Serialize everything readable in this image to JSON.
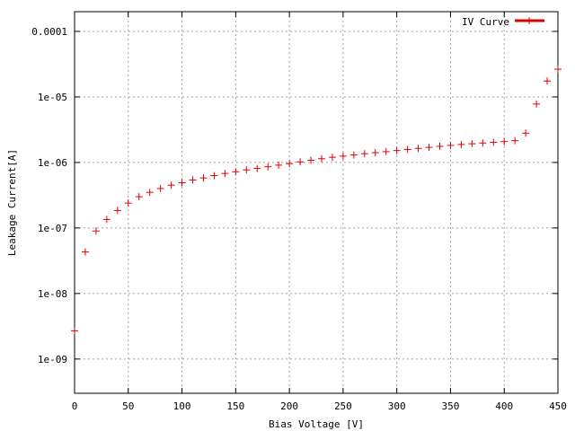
{
  "chart_data": {
    "type": "scatter",
    "title": "",
    "xlabel": "Bias Voltage [V]",
    "ylabel": "Leakage Current[A]",
    "xlim": [
      0,
      450
    ],
    "ylim": [
      3e-10,
      0.0002
    ],
    "yscale": "log",
    "grid": true,
    "legend_position": "top-right",
    "x_ticks": [
      0,
      50,
      100,
      150,
      200,
      250,
      300,
      350,
      400,
      450
    ],
    "x_tick_labels": [
      "0",
      "50",
      "100",
      "150",
      "200",
      "250",
      "300",
      "350",
      "400",
      "450"
    ],
    "y_ticks": [
      1e-09,
      1e-08,
      1e-07,
      1e-06,
      1e-05,
      0.0001
    ],
    "y_tick_labels": [
      "1e-09",
      "1e-08",
      "1e-07",
      "1e-06",
      "1e-05",
      "0.0001"
    ],
    "series": [
      {
        "name": "IV Curve",
        "color": "#e00000",
        "marker": "plus",
        "x": [
          0,
          10,
          20,
          30,
          40,
          50,
          60,
          70,
          80,
          90,
          100,
          110,
          120,
          130,
          140,
          150,
          160,
          170,
          180,
          190,
          200,
          210,
          220,
          230,
          240,
          250,
          260,
          270,
          280,
          290,
          300,
          310,
          320,
          330,
          340,
          350,
          360,
          370,
          380,
          390,
          400,
          410,
          420,
          430,
          440,
          450
        ],
        "y": [
          2.7e-09,
          4.3e-08,
          9e-08,
          1.35e-07,
          1.85e-07,
          2.4e-07,
          3e-07,
          3.5e-07,
          4e-07,
          4.5e-07,
          4.9e-07,
          5.4e-07,
          5.8e-07,
          6.3e-07,
          6.8e-07,
          7.2e-07,
          7.7e-07,
          8.1e-07,
          8.6e-07,
          9.1e-07,
          9.6e-07,
          1.02e-06,
          1.08e-06,
          1.14e-06,
          1.2e-06,
          1.25e-06,
          1.3e-06,
          1.36e-06,
          1.41e-06,
          1.46e-06,
          1.52e-06,
          1.58e-06,
          1.64e-06,
          1.7e-06,
          1.76e-06,
          1.82e-06,
          1.88e-06,
          1.93e-06,
          1.98e-06,
          2.03e-06,
          2.08e-06,
          2.15e-06,
          2.8e-06,
          7.8e-06,
          1.75e-05,
          2.65e-05
        ]
      }
    ]
  }
}
